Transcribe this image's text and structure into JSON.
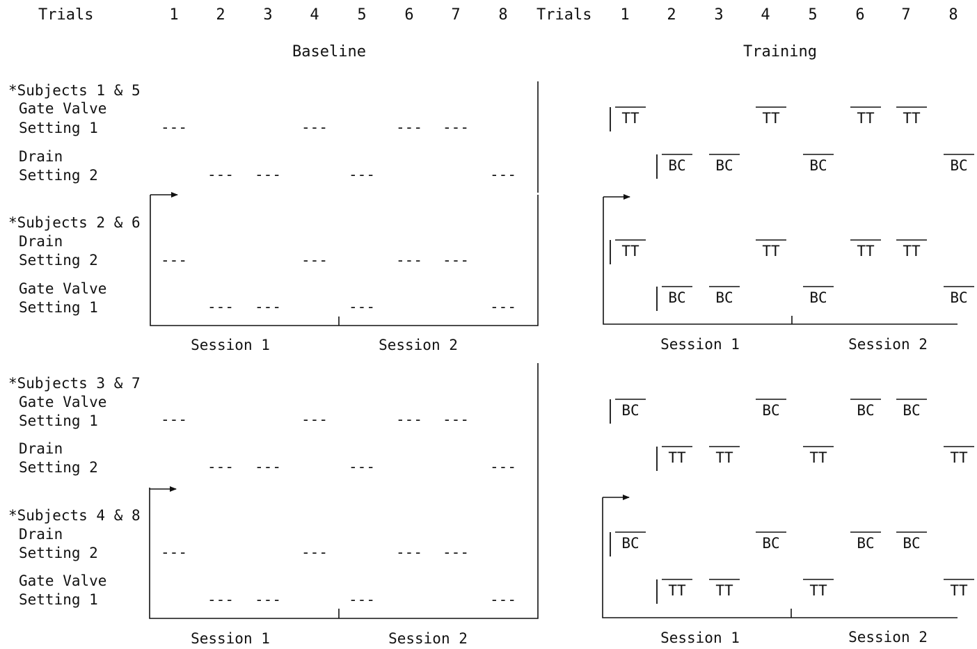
{
  "header": {
    "trials_label": "Trials",
    "trial_numbers": [
      "1",
      "2",
      "3",
      "4",
      "5",
      "6",
      "7",
      "8"
    ],
    "baseline_title": "Baseline",
    "training_title": "Training"
  },
  "dash_mark": "---",
  "session_labels": [
    "Session 1",
    "Session 2"
  ],
  "rows": [
    {
      "subjects": "*Subjects 1 & 5",
      "conditions": [
        {
          "name": "Gate Valve",
          "setting": "Setting 1",
          "trials": [
            1,
            4,
            6,
            7
          ],
          "code": "TT"
        },
        {
          "name": "Drain",
          "setting": "Setting 2",
          "trials": [
            2,
            3,
            5,
            8
          ],
          "code": "BC"
        }
      ]
    },
    {
      "subjects": "*Subjects 2 & 6",
      "conditions": [
        {
          "name": "Drain",
          "setting": "Setting 2",
          "trials": [
            1,
            4,
            6,
            7
          ],
          "code": "TT"
        },
        {
          "name": "Gate Valve",
          "setting": "Setting 1",
          "trials": [
            2,
            3,
            5,
            8
          ],
          "code": "BC"
        }
      ]
    },
    {
      "subjects": "*Subjects 3 & 7",
      "conditions": [
        {
          "name": "Gate Valve",
          "setting": "Setting 1",
          "trials": [
            1,
            4,
            6,
            7
          ],
          "code": "BC"
        },
        {
          "name": "Drain",
          "setting": "Setting 2",
          "trials": [
            2,
            3,
            5,
            8
          ],
          "code": "TT"
        }
      ]
    },
    {
      "subjects": "*Subjects 4 & 8",
      "conditions": [
        {
          "name": "Drain",
          "setting": "Setting 2",
          "trials": [
            1,
            4,
            6,
            7
          ],
          "code": "BC"
        },
        {
          "name": "Gate Valve",
          "setting": "Setting 1",
          "trials": [
            2,
            3,
            5,
            8
          ],
          "code": "TT"
        }
      ]
    }
  ]
}
